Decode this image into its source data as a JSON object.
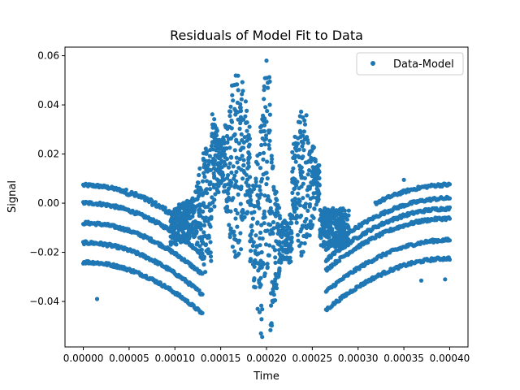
{
  "chart_data": {
    "type": "scatter",
    "title": "Residuals of Model Fit to Data",
    "xlabel": "Time",
    "ylabel": "Signal",
    "xlim": [
      -2e-05,
      0.00042
    ],
    "ylim": [
      -0.0585,
      0.0635
    ],
    "xticks": [
      0.0,
      5e-05,
      0.0001,
      0.00015,
      0.0002,
      0.00025,
      0.0003,
      0.00035,
      0.0004
    ],
    "xtick_labels": [
      "0.00000",
      "0.00005",
      "0.00010",
      "0.00015",
      "0.00020",
      "0.00025",
      "0.00030",
      "0.00035",
      "0.00040"
    ],
    "yticks": [
      -0.04,
      -0.02,
      0.0,
      0.02,
      0.04,
      0.06
    ],
    "ytick_labels": [
      "−0.04",
      "−0.02",
      "0.00",
      "0.02",
      "0.04",
      "0.06"
    ],
    "grid": false,
    "legend_position": "top-right",
    "series": [
      {
        "name": "Data-Model",
        "color": "#1f77b4",
        "marker": "circle",
        "left_bands": [
          0.0073,
          0.0001,
          -0.0081,
          -0.0161,
          -0.024
        ],
        "right_bands": [
          0.0075,
          0.002,
          -0.0022,
          -0.0062,
          -0.015,
          -0.0225
        ],
        "envelope_peaks": [
          {
            "x": 0.000135,
            "amp": 0.026
          },
          {
            "x": 0.000168,
            "amp": 0.041
          },
          {
            "x": 0.000198,
            "amp": 0.048
          },
          {
            "x": 0.00024,
            "amp": 0.03
          }
        ],
        "outliers": [
          {
            "x": 0.0002,
            "y": 0.058
          },
          {
            "x": 0.000194,
            "y": -0.053
          },
          {
            "x": 1.5e-05,
            "y": -0.039
          },
          {
            "x": 0.000369,
            "y": -0.0315
          },
          {
            "x": 0.000395,
            "y": -0.031
          },
          {
            "x": 0.00035,
            "y": 0.0095
          }
        ]
      }
    ]
  }
}
